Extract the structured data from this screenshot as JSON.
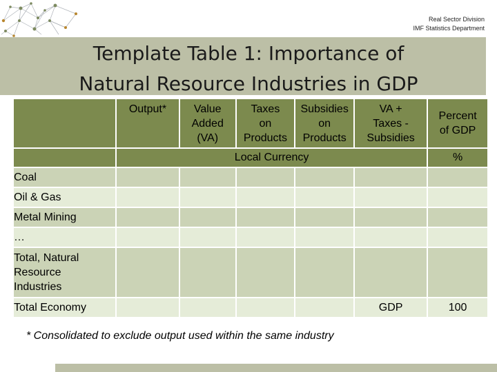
{
  "header": {
    "org_line1": "Real Sector Division",
    "org_line2": "IMF Statistics Department"
  },
  "title": {
    "line1": "Template Table 1: Importance of",
    "line2": "Natural Resource Industries in GDP"
  },
  "table": {
    "columns": [
      {
        "label": "Output*"
      },
      {
        "label": "Value\nAdded\n(VA)"
      },
      {
        "label": "Taxes\non\nProducts"
      },
      {
        "label": "Subsidies\non\nProducts"
      },
      {
        "label": "VA +\nTaxes -\nSubsidies"
      },
      {
        "label": "Percent\nof GDP"
      }
    ],
    "units": {
      "currency": "Local Currency",
      "percent": "%"
    },
    "rows": [
      {
        "label": "Coal"
      },
      {
        "label": "Oil & Gas"
      },
      {
        "label": "Metal Mining"
      },
      {
        "label": "…"
      },
      {
        "label": "Total, Natural\nResource\nIndustries"
      }
    ],
    "total_row": {
      "label": "Total Economy",
      "va_cell": "GDP",
      "percent_cell": "100"
    }
  },
  "footnote": "* Consolidated  to exclude output used within the same industry",
  "colors": {
    "header_band": "#7c8a4e",
    "row_dark": "#cbd3b6",
    "row_light": "#e5ecd8",
    "title_band": "#bcbfa6"
  }
}
